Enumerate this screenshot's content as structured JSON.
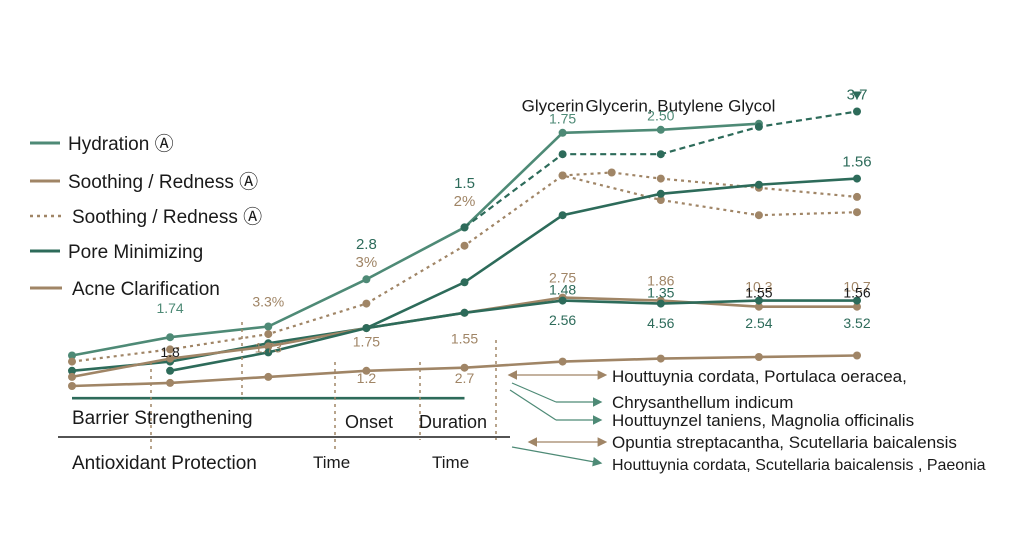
{
  "chart_data": {
    "type": "line",
    "x": [
      0,
      1,
      2,
      3,
      4,
      5,
      6,
      7
    ],
    "legend": [
      {
        "label": "Hydration Ⓐ",
        "color": "#4e8a76",
        "style": "solid"
      },
      {
        "label": "Soothing / Redness Ⓐ",
        "color": "#a08566",
        "style": "solid"
      },
      {
        "label": "Soothing / Redness Ⓐ",
        "color": "#a08566",
        "style": "dotted"
      },
      {
        "label": "Pore Minimizing",
        "color": "#2d6b5a",
        "style": "solid"
      },
      {
        "label": "Acne Clarification",
        "color": "#a08566",
        "style": "solid"
      }
    ],
    "series": [
      {
        "id": "hydration",
        "color": "#4e8a76",
        "style": "solid",
        "points": [
          [
            0,
            1.0
          ],
          [
            1,
            1.6
          ],
          [
            2,
            1.95
          ],
          [
            3,
            3.5
          ],
          [
            4,
            5.2
          ],
          [
            5,
            8.3
          ],
          [
            6,
            8.4
          ],
          [
            7,
            8.6
          ]
        ]
      },
      {
        "id": "hydration-dashed",
        "color": "#2d6b5a",
        "style": "dashed",
        "points": [
          [
            4,
            5.2
          ],
          [
            5,
            7.6
          ],
          [
            6,
            7.6
          ],
          [
            7,
            8.5
          ],
          [
            8,
            9.0
          ]
        ]
      },
      {
        "id": "soothing-dotted-1",
        "color": "#a08566",
        "style": "dotted",
        "points": [
          [
            0,
            0.8
          ],
          [
            1,
            1.2
          ],
          [
            2,
            1.7
          ],
          [
            3,
            2.7
          ],
          [
            4,
            4.6
          ],
          [
            5,
            6.9
          ],
          [
            6,
            6.1
          ],
          [
            7,
            5.6
          ],
          [
            8,
            5.7
          ]
        ]
      },
      {
        "id": "soothing-dotted-2",
        "color": "#a08566",
        "style": "dotted",
        "points": [
          [
            5,
            6.9
          ],
          [
            5.5,
            7.0
          ],
          [
            6,
            6.8
          ],
          [
            7,
            6.5
          ],
          [
            8,
            6.2
          ]
        ]
      },
      {
        "id": "pore",
        "color": "#2d6b5a",
        "style": "solid",
        "points": [
          [
            0,
            0.5
          ],
          [
            1,
            0.8
          ],
          [
            2,
            1.4
          ],
          [
            3,
            1.9
          ],
          [
            4,
            3.4
          ],
          [
            5,
            5.6
          ],
          [
            6,
            6.3
          ],
          [
            7,
            6.6
          ],
          [
            8,
            6.8
          ]
        ]
      },
      {
        "id": "soothing-solid",
        "color": "#a08566",
        "style": "solid",
        "points": [
          [
            0,
            0.3
          ],
          [
            1,
            0.9
          ],
          [
            2,
            1.3
          ],
          [
            3,
            1.9
          ],
          [
            4,
            2.4
          ],
          [
            5,
            2.9
          ],
          [
            6,
            2.8
          ],
          [
            7,
            2.6
          ],
          [
            8,
            2.6
          ]
        ]
      },
      {
        "id": "pore-2",
        "color": "#2d6b5a",
        "style": "solid",
        "points": [
          [
            1,
            0.5
          ],
          [
            2,
            1.1
          ],
          [
            3,
            1.9
          ],
          [
            4,
            2.4
          ],
          [
            5,
            2.8
          ],
          [
            6,
            2.7
          ],
          [
            7,
            2.8
          ],
          [
            8,
            2.8
          ]
        ]
      },
      {
        "id": "acne",
        "color": "#a08566",
        "style": "solid",
        "points": [
          [
            0,
            0.0
          ],
          [
            1,
            0.1
          ],
          [
            2,
            0.3
          ],
          [
            3,
            0.5
          ],
          [
            4,
            0.6
          ],
          [
            5,
            0.8
          ],
          [
            6,
            0.9
          ],
          [
            7,
            0.95
          ],
          [
            8,
            1.0
          ]
        ]
      },
      {
        "id": "barrier",
        "color": "#2d6b5a",
        "style": "solid",
        "points": [
          [
            0,
            -0.4
          ],
          [
            3,
            -0.4
          ],
          [
            4,
            -0.4
          ]
        ]
      }
    ],
    "data_labels": [
      {
        "text": "Glycerin",
        "x": 4.9,
        "y": 9.0,
        "color": "#1a1a1a",
        "size": 17
      },
      {
        "text": "Glycerin, Butylene Glycol",
        "x": 6.2,
        "y": 9.0,
        "color": "#1a1a1a",
        "size": 17
      },
      {
        "text": "3.7",
        "x": 8.0,
        "y": 9.4,
        "color": "#2d6b5a",
        "size": 15
      },
      {
        "text": "1.75",
        "x": 5.0,
        "y": 8.6,
        "color": "#4e8a76",
        "size": 14
      },
      {
        "text": "2.50",
        "x": 6.0,
        "y": 8.7,
        "color": "#4e8a76",
        "size": 14
      },
      {
        "text": "1.56",
        "x": 8.0,
        "y": 7.2,
        "color": "#2d6b5a",
        "size": 15
      },
      {
        "text": "1.5",
        "x": 4.0,
        "y": 6.5,
        "color": "#2d6b5a",
        "size": 15
      },
      {
        "text": "2%",
        "x": 4.0,
        "y": 5.9,
        "color": "#a08566",
        "size": 15
      },
      {
        "text": "2.8",
        "x": 3.0,
        "y": 4.5,
        "color": "#2d6b5a",
        "size": 15
      },
      {
        "text": "3%",
        "x": 3.0,
        "y": 3.9,
        "color": "#a08566",
        "size": 15
      },
      {
        "text": "1.74",
        "x": 1.0,
        "y": 2.4,
        "color": "#4e8a76",
        "size": 14
      },
      {
        "text": "3.3%",
        "x": 2.0,
        "y": 2.6,
        "color": "#a08566",
        "size": 14
      },
      {
        "text": "2.75",
        "x": 5.0,
        "y": 3.4,
        "color": "#a08566",
        "size": 14
      },
      {
        "text": "1.86",
        "x": 6.0,
        "y": 3.3,
        "color": "#a08566",
        "size": 14
      },
      {
        "text": "10.3",
        "x": 7.0,
        "y": 3.1,
        "color": "#a08566",
        "size": 14
      },
      {
        "text": "10.7",
        "x": 8.0,
        "y": 3.1,
        "color": "#a08566",
        "size": 14
      },
      {
        "text": "1.48",
        "x": 5.0,
        "y": 3.0,
        "color": "#2d6b5a",
        "size": 14
      },
      {
        "text": "1.35",
        "x": 6.0,
        "y": 2.9,
        "color": "#2d6b5a",
        "size": 14
      },
      {
        "text": "1.55",
        "x": 7.0,
        "y": 2.9,
        "color": "#1a1a1a",
        "size": 14
      },
      {
        "text": "1.56",
        "x": 8.0,
        "y": 2.9,
        "color": "#1a1a1a",
        "size": 14
      },
      {
        "text": "2.56",
        "x": 5.0,
        "y": 2.0,
        "color": "#2d6b5a",
        "size": 14
      },
      {
        "text": "4.56",
        "x": 6.0,
        "y": 1.9,
        "color": "#2d6b5a",
        "size": 14
      },
      {
        "text": "2.54",
        "x": 7.0,
        "y": 1.9,
        "color": "#2d6b5a",
        "size": 14
      },
      {
        "text": "3.52",
        "x": 8.0,
        "y": 1.9,
        "color": "#2d6b5a",
        "size": 14
      },
      {
        "text": "1.8",
        "x": 1.0,
        "y": 0.95,
        "color": "#1a1a1a",
        "size": 14
      },
      {
        "text": "1.73",
        "x": 2.0,
        "y": 1.1,
        "color": "#a08566",
        "size": 14
      },
      {
        "text": "1.75",
        "x": 3.0,
        "y": 1.3,
        "color": "#a08566",
        "size": 14
      },
      {
        "text": "1.55",
        "x": 4.0,
        "y": 1.4,
        "color": "#a08566",
        "size": 14
      },
      {
        "text": "1.2",
        "x": 3.0,
        "y": 0.1,
        "color": "#a08566",
        "size": 14
      },
      {
        "text": "2.7",
        "x": 4.0,
        "y": 0.1,
        "color": "#a08566",
        "size": 14
      }
    ],
    "axis_text": {
      "barrier": "Barrier Strengthening",
      "onset": "Onset",
      "duration": "Duration",
      "antioxidant": "Antioxidant Protection",
      "time1": "Time",
      "time2": "Time"
    },
    "ingredients": [
      {
        "text": "Houttuynia cordata, Portulaca oeracea,",
        "color": "#a08566"
      },
      {
        "text": "Chrysanthellum indicum",
        "color": "#4e8a76"
      },
      {
        "text": "Houttuynzel taniens, Magnolia officinalis",
        "color": "#4e8a76"
      },
      {
        "text": "Opuntia streptacantha, Scutellaria baicalensis",
        "color": "#a08566"
      },
      {
        "text": "Houttuynia cordata, Scutellaria baicalensis , Paeonia",
        "color": "#4e8a76"
      }
    ]
  }
}
